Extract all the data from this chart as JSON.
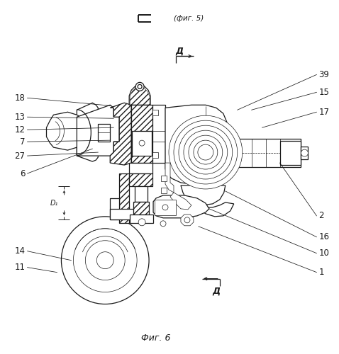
{
  "title": "Фиг. 6",
  "section_label_top": "Г",
  "section_ref_top": "(фиг. 5)",
  "section_label_d": "Д",
  "bg_color": "#ffffff",
  "dark": "#1a1a1a",
  "lw_main": 0.9,
  "lw_thin": 0.5,
  "lw_thick": 1.4
}
